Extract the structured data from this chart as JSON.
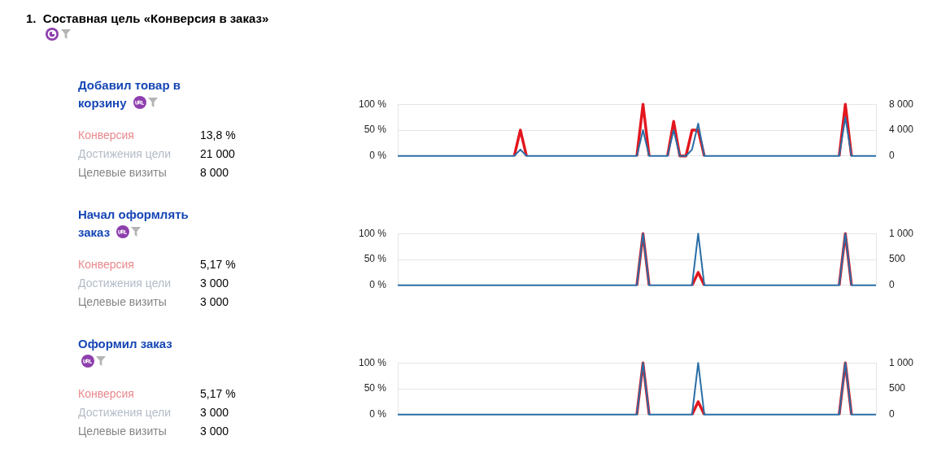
{
  "chart_data": [
    {
      "type": "other",
      "title": "1.  Составная цель «Конверсия в заказ»"
    },
    {
      "type": "other",
      "title": "Добавил товар в корзину",
      "annotations": [
        "Конверсия",
        "13,8 %",
        "Достижения цели",
        "21 000",
        "Целевые визиты",
        "8 000"
      ]
    },
    {
      "type": "line",
      "categories": [
        null,
        null,
        null,
        null,
        null,
        null,
        null,
        null,
        null,
        null,
        null,
        null,
        null,
        null,
        null,
        null,
        null,
        null,
        null,
        null,
        null,
        null,
        null,
        null,
        null,
        null,
        null,
        null,
        null,
        null,
        null,
        null,
        null,
        null,
        null,
        null,
        null,
        null,
        null,
        null,
        null,
        null,
        null,
        null,
        null,
        null,
        null,
        null,
        null,
        null,
        null,
        null,
        null,
        null,
        null,
        null,
        null,
        null,
        null,
        null,
        null,
        null,
        null,
        null,
        null,
        null,
        null,
        null,
        null,
        null,
        null,
        null,
        null,
        null,
        null,
        null,
        null,
        null,
        null
      ],
      "series": [
        {
          "color": "#e3161e",
          "values": [
            null,
            null,
            null,
            null,
            null,
            null,
            null,
            null,
            null,
            null,
            null,
            null,
            null,
            null,
            null,
            null,
            null,
            null,
            null,
            0,
            50,
            0,
            null,
            null,
            null,
            null,
            null,
            null,
            null,
            null,
            null,
            null,
            null,
            null,
            null,
            null,
            null,
            null,
            null,
            0,
            100,
            0,
            null,
            null,
            0,
            67,
            0,
            0,
            50,
            50,
            0,
            null,
            null,
            null,
            null,
            null,
            null,
            null,
            null,
            null,
            null,
            null,
            null,
            null,
            null,
            null,
            null,
            null,
            null,
            null,
            null,
            null,
            0,
            100,
            0,
            null,
            null,
            null,
            null
          ]
        },
        {
          "color": "#2a6ea6",
          "axis": "y2",
          "values": [
            0,
            0,
            0,
            0,
            0,
            0,
            0,
            0,
            0,
            0,
            0,
            0,
            0,
            0,
            0,
            0,
            0,
            0,
            0,
            0,
            1000,
            0,
            0,
            0,
            0,
            0,
            0,
            0,
            0,
            0,
            0,
            0,
            0,
            0,
            0,
            0,
            0,
            0,
            0,
            0,
            4000,
            0,
            0,
            0,
            0,
            4000,
            0,
            0,
            1000,
            5000,
            0,
            0,
            0,
            0,
            0,
            0,
            0,
            0,
            0,
            0,
            0,
            0,
            0,
            0,
            0,
            0,
            0,
            0,
            0,
            0,
            0,
            0,
            0,
            6000,
            0,
            0,
            0,
            0,
            0
          ]
        }
      ],
      "ylim": [
        0,
        100
      ],
      "yticks": [
        {
          "value": 0,
          "label": "0 %"
        },
        {
          "value": 50,
          "label": "50 %"
        },
        {
          "value": 100,
          "label": "100 %"
        }
      ],
      "y2lim": [
        0,
        8000
      ],
      "y2ticks": [
        {
          "value": 0,
          "label": "0"
        },
        {
          "value": 4000,
          "label": "4 000"
        },
        {
          "value": 8000,
          "label": "8 000"
        }
      ],
      "grid": "y",
      "marker": "none"
    },
    {
      "type": "other",
      "title": "Начал оформлять заказ",
      "annotations": [
        "Конверсия",
        "5,17 %",
        "Достижения цели",
        "3 000",
        "Целевые визиты",
        "3 000"
      ]
    },
    {
      "type": "line",
      "categories": [
        null,
        null,
        null,
        null,
        null,
        null,
        null,
        null,
        null,
        null,
        null,
        null,
        null,
        null,
        null,
        null,
        null,
        null,
        null,
        null,
        null,
        null,
        null,
        null,
        null,
        null,
        null,
        null,
        null,
        null,
        null,
        null,
        null,
        null,
        null,
        null,
        null,
        null,
        null,
        null,
        null,
        null,
        null,
        null,
        null,
        null,
        null,
        null,
        null,
        null,
        null,
        null,
        null,
        null,
        null,
        null,
        null,
        null,
        null,
        null,
        null,
        null,
        null,
        null,
        null,
        null,
        null,
        null,
        null,
        null,
        null,
        null,
        null,
        null,
        null,
        null,
        null,
        null,
        null
      ],
      "series": [
        {
          "color": "#e3161e",
          "values": [
            null,
            null,
            null,
            null,
            null,
            null,
            null,
            null,
            null,
            null,
            null,
            null,
            null,
            null,
            null,
            null,
            null,
            null,
            null,
            null,
            null,
            null,
            null,
            null,
            null,
            null,
            null,
            null,
            null,
            null,
            null,
            null,
            null,
            null,
            null,
            null,
            null,
            null,
            null,
            0,
            100,
            0,
            null,
            null,
            null,
            null,
            null,
            null,
            0,
            25,
            0,
            null,
            null,
            null,
            null,
            null,
            null,
            null,
            null,
            null,
            null,
            null,
            null,
            null,
            null,
            null,
            null,
            null,
            null,
            null,
            null,
            null,
            0,
            100,
            0,
            null,
            null,
            null,
            null
          ]
        },
        {
          "color": "#2a6ea6",
          "axis": "y2",
          "values": [
            0,
            0,
            0,
            0,
            0,
            0,
            0,
            0,
            0,
            0,
            0,
            0,
            0,
            0,
            0,
            0,
            0,
            0,
            0,
            0,
            0,
            0,
            0,
            0,
            0,
            0,
            0,
            0,
            0,
            0,
            0,
            0,
            0,
            0,
            0,
            0,
            0,
            0,
            0,
            0,
            1000,
            0,
            0,
            0,
            0,
            0,
            0,
            0,
            0,
            1000,
            0,
            0,
            0,
            0,
            0,
            0,
            0,
            0,
            0,
            0,
            0,
            0,
            0,
            0,
            0,
            0,
            0,
            0,
            0,
            0,
            0,
            0,
            0,
            1000,
            0,
            0,
            0,
            0,
            0
          ]
        }
      ],
      "ylim": [
        0,
        100
      ],
      "yticks": [
        {
          "value": 0,
          "label": "0 %"
        },
        {
          "value": 50,
          "label": "50 %"
        },
        {
          "value": 100,
          "label": "100 %"
        }
      ],
      "y2lim": [
        0,
        1000
      ],
      "y2ticks": [
        {
          "value": 0,
          "label": "0"
        },
        {
          "value": 500,
          "label": "500"
        },
        {
          "value": 1000,
          "label": "1 000"
        }
      ],
      "grid": "y",
      "marker": "none"
    },
    {
      "type": "other",
      "title": "Оформил заказ",
      "annotations": [
        "Конверсия",
        "5,17 %",
        "Достижения цели",
        "3 000",
        "Целевые визиты",
        "3 000"
      ]
    },
    {
      "type": "line",
      "categories": [
        null,
        null,
        null,
        null,
        null,
        null,
        null,
        null,
        null,
        null,
        null,
        null,
        null,
        null,
        null,
        null,
        null,
        null,
        null,
        null,
        null,
        null,
        null,
        null,
        null,
        null,
        null,
        null,
        null,
        null,
        null,
        null,
        null,
        null,
        null,
        null,
        null,
        null,
        null,
        null,
        null,
        null,
        null,
        null,
        null,
        null,
        null,
        null,
        null,
        null,
        null,
        null,
        null,
        null,
        null,
        null,
        null,
        null,
        null,
        null,
        null,
        null,
        null,
        null,
        null,
        null,
        null,
        null,
        null,
        null,
        null,
        null,
        null,
        null,
        null,
        null,
        null,
        null,
        null
      ],
      "series": [
        {
          "color": "#e3161e",
          "values": [
            null,
            null,
            null,
            null,
            null,
            null,
            null,
            null,
            null,
            null,
            null,
            null,
            null,
            null,
            null,
            null,
            null,
            null,
            null,
            null,
            null,
            null,
            null,
            null,
            null,
            null,
            null,
            null,
            null,
            null,
            null,
            null,
            null,
            null,
            null,
            null,
            null,
            null,
            null,
            0,
            100,
            0,
            null,
            null,
            null,
            null,
            null,
            null,
            0,
            25,
            0,
            null,
            null,
            null,
            null,
            null,
            null,
            null,
            null,
            null,
            null,
            null,
            null,
            null,
            null,
            null,
            null,
            null,
            null,
            null,
            null,
            null,
            0,
            100,
            0,
            null,
            null,
            null,
            null
          ]
        },
        {
          "color": "#2a6ea6",
          "axis": "y2",
          "values": [
            0,
            0,
            0,
            0,
            0,
            0,
            0,
            0,
            0,
            0,
            0,
            0,
            0,
            0,
            0,
            0,
            0,
            0,
            0,
            0,
            0,
            0,
            0,
            0,
            0,
            0,
            0,
            0,
            0,
            0,
            0,
            0,
            0,
            0,
            0,
            0,
            0,
            0,
            0,
            0,
            1000,
            0,
            0,
            0,
            0,
            0,
            0,
            0,
            0,
            1000,
            0,
            0,
            0,
            0,
            0,
            0,
            0,
            0,
            0,
            0,
            0,
            0,
            0,
            0,
            0,
            0,
            0,
            0,
            0,
            0,
            0,
            0,
            0,
            1000,
            0,
            0,
            0,
            0,
            0
          ]
        }
      ],
      "ylim": [
        0,
        100
      ],
      "yticks": [
        {
          "value": 0,
          "label": "0 %"
        },
        {
          "value": 50,
          "label": "50 %"
        },
        {
          "value": 100,
          "label": "100 %"
        }
      ],
      "y2lim": [
        0,
        1000
      ],
      "y2ticks": [
        {
          "value": 0,
          "label": "0"
        },
        {
          "value": 500,
          "label": "500"
        },
        {
          "value": 1000,
          "label": "1 000"
        }
      ],
      "grid": "y",
      "marker": "none"
    }
  ]
}
